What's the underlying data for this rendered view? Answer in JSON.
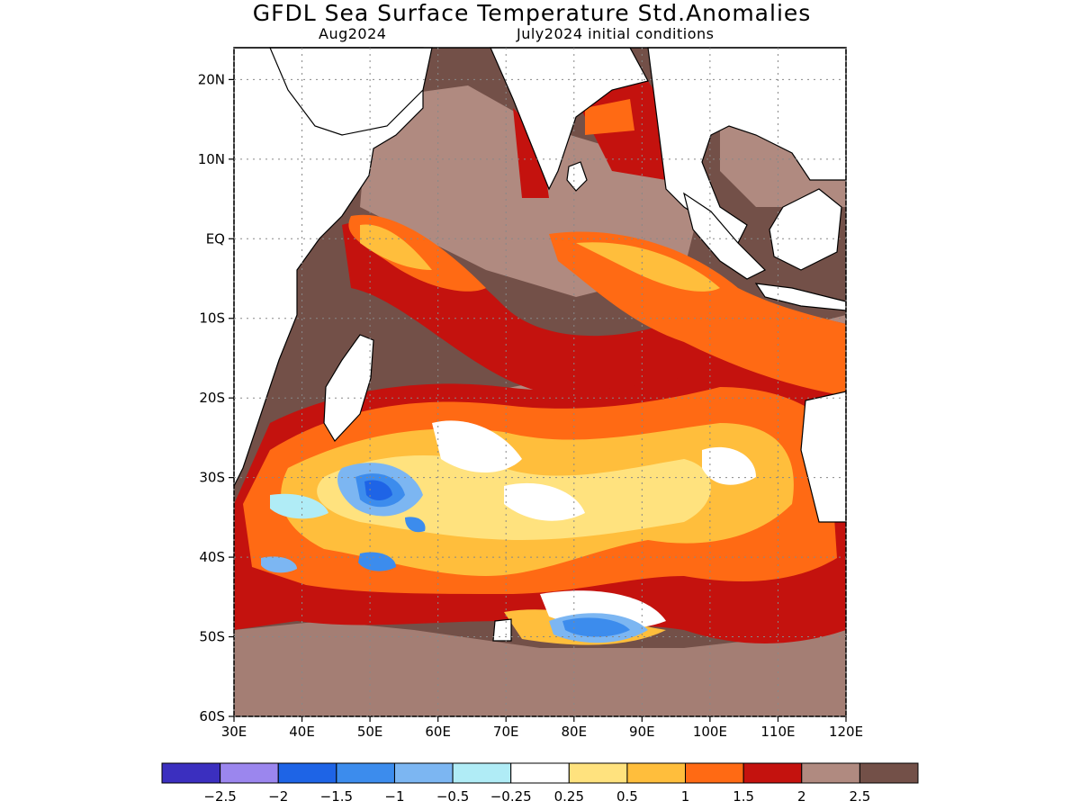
{
  "title": "GFDL Sea Surface Temperature Std.Anomalies",
  "subtitle_left": "Aug2024",
  "subtitle_right": "July2024 initial conditions",
  "map": {
    "lon_range": [
      30,
      120
    ],
    "lat_range": [
      -60,
      24
    ],
    "lat_ticks": [
      {
        "value": 20,
        "label": "20N"
      },
      {
        "value": 10,
        "label": "10N"
      },
      {
        "value": 0,
        "label": "EQ"
      },
      {
        "value": -10,
        "label": "10S"
      },
      {
        "value": -20,
        "label": "20S"
      },
      {
        "value": -30,
        "label": "30S"
      },
      {
        "value": -40,
        "label": "40S"
      },
      {
        "value": -50,
        "label": "50S"
      },
      {
        "value": -60,
        "label": "60S"
      }
    ],
    "lon_ticks": [
      {
        "value": 30,
        "label": "30E"
      },
      {
        "value": 40,
        "label": "40E"
      },
      {
        "value": 50,
        "label": "50E"
      },
      {
        "value": 60,
        "label": "60E"
      },
      {
        "value": 70,
        "label": "70E"
      },
      {
        "value": 80,
        "label": "80E"
      },
      {
        "value": 90,
        "label": "90E"
      },
      {
        "value": 100,
        "label": "100E"
      },
      {
        "value": 110,
        "label": "110E"
      },
      {
        "value": 120,
        "label": "120E"
      }
    ],
    "grid": "dotted"
  },
  "colorbar": {
    "colors": [
      "#3b2fbf",
      "#9b86ee",
      "#1e64e6",
      "#3c8ced",
      "#7cb6f2",
      "#b0ecf6",
      "#ffffff",
      "#ffe27e",
      "#ffbe3c",
      "#ff6a14",
      "#c4120e",
      "#b08a80",
      "#735048"
    ],
    "labels": [
      "−2.5",
      "−2",
      "−1.5",
      "−1",
      "−0.5",
      "−0.25",
      "0.25",
      "0.5",
      "1",
      "1.5",
      "2",
      "2.5"
    ]
  },
  "legend_colors": {
    "land": "#ffffff",
    "coast": "#000000"
  }
}
